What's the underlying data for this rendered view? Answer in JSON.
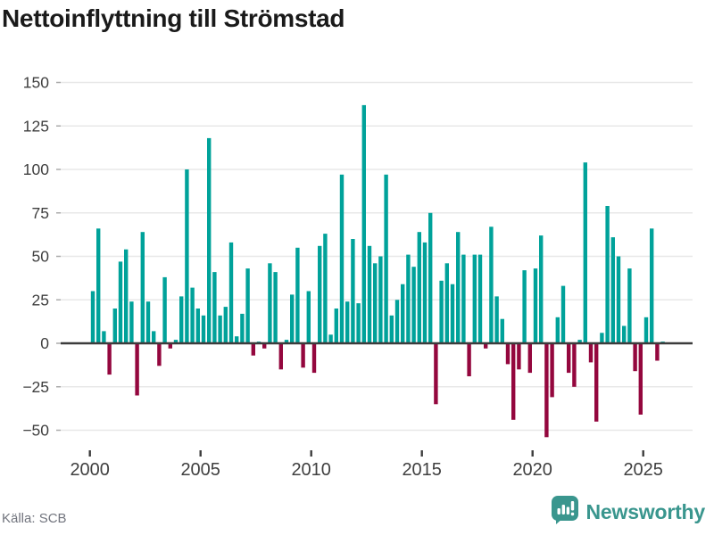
{
  "title": "Nettoinflyttning till Strömstad",
  "source": "Källa: SCB",
  "branding": {
    "name": "Newsworthy",
    "color": "#3A968E",
    "icon": "bar-chart-speech-bubble"
  },
  "chart_data": {
    "type": "bar",
    "frequency": "quarterly",
    "start_year": 2000,
    "quarters_per_year": 4,
    "title": "Nettoinflyttning till Strömstad",
    "xlabel": "",
    "ylabel": "",
    "grid": true,
    "legend": "none",
    "ylim": [
      -65,
      154
    ],
    "positive_color": "#00A29A",
    "negative_color": "#94073E",
    "axis_color": "#3C3C3C",
    "gridline_color": "#E8E8E8",
    "tick_text_color": "#3F3F3F",
    "y_ticks": [
      {
        "label": "150",
        "value": 150
      },
      {
        "label": "125",
        "value": 125
      },
      {
        "label": "100",
        "value": 100
      },
      {
        "label": "75",
        "value": 75
      },
      {
        "label": "50",
        "value": 50
      },
      {
        "label": "25",
        "value": 25
      },
      {
        "label": "0",
        "value": 0
      },
      {
        "label": "−25",
        "value": -25
      },
      {
        "label": "−50",
        "value": -50
      }
    ],
    "x_ticks": [
      {
        "label": "2000",
        "year": 2000
      },
      {
        "label": "2005",
        "year": 2005
      },
      {
        "label": "2010",
        "year": 2010
      },
      {
        "label": "2015",
        "year": 2015
      },
      {
        "label": "2020",
        "year": 2020
      },
      {
        "label": "2025",
        "year": 2025
      }
    ],
    "values": [
      30,
      66,
      7,
      -18,
      20,
      47,
      54,
      24,
      -30,
      64,
      24,
      7,
      -13,
      38,
      -3,
      2,
      27,
      100,
      32,
      20,
      16,
      118,
      41,
      16,
      21,
      58,
      4,
      17,
      43,
      -7,
      1,
      -3,
      46,
      41,
      -15,
      2,
      28,
      55,
      -14,
      30,
      -17,
      56,
      63,
      5,
      20,
      97,
      24,
      60,
      23,
      137,
      56,
      46,
      50,
      97,
      16,
      25,
      34,
      51,
      44,
      64,
      58,
      75,
      -35,
      36,
      46,
      34,
      64,
      51,
      -19,
      51,
      51,
      -3,
      67,
      27,
      14,
      -12,
      -44,
      -15,
      42,
      -17,
      43,
      62,
      -54,
      -31,
      15,
      33,
      -17,
      -25,
      2,
      104,
      -11,
      -45,
      6,
      79,
      61,
      50,
      10,
      43,
      -16,
      -41,
      15,
      66,
      -10,
      1
    ]
  }
}
